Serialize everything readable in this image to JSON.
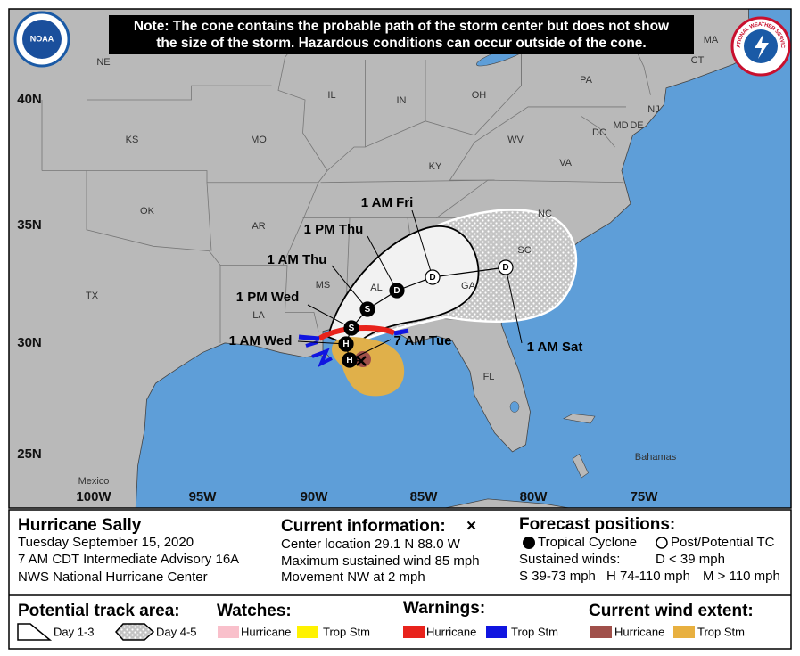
{
  "note": [
    "Note: The cone contains the probable path of the storm center but does not show",
    "the size of the storm. Hazardous conditions can occur outside of the cone."
  ],
  "logos": {
    "noaa": "NOAA",
    "nws": "NATIONAL WEATHER SERVICE"
  },
  "map": {
    "states": [
      "NE",
      "IL",
      "IN",
      "OH",
      "PA",
      "KS",
      "MO",
      "KY",
      "WV",
      "VA",
      "OK",
      "AR",
      "NC",
      "SC",
      "GA",
      "AL",
      "MS",
      "LA",
      "TX",
      "FL",
      "MA",
      "CT",
      "NJ",
      "MD",
      "DE",
      "DC"
    ],
    "places": [
      "Mexico",
      "Bahamas"
    ],
    "latitudes": [
      "40N",
      "35N",
      "30N",
      "25N"
    ],
    "longitudes": [
      "100W",
      "95W",
      "90W",
      "85W",
      "80W",
      "75W"
    ],
    "forecast_times": [
      "1 AM Fri",
      "1 PM Thu",
      "1 AM Thu",
      "1 PM Wed",
      "1 AM Wed",
      "7 AM Tue",
      "1 AM Sat"
    ],
    "markers": [
      "H",
      "H",
      "S",
      "S",
      "D",
      "D",
      "D"
    ]
  },
  "info": {
    "storm": "Hurricane Sally",
    "date": "Tuesday September 15, 2020",
    "advisory": "7 AM CDT Intermediate Advisory 16A",
    "office": "NWS National Hurricane Center",
    "current_title": "Current information:",
    "current_symbol": "×",
    "current_lines": [
      "Center location 29.1 N 88.0 W",
      "Maximum sustained wind 85 mph",
      "Movement NW at 2 mph"
    ],
    "forecast_title": "Forecast positions:",
    "tropical": "Tropical Cyclone",
    "post": "Post/Potential TC",
    "winds_title": "Sustained winds:",
    "winds": [
      "D < 39 mph",
      "S 39-73 mph",
      "H 74-110 mph",
      "M > 110 mph"
    ]
  },
  "legend": {
    "track_title": "Potential track area:",
    "track": [
      "Day 1-3",
      "Day 4-5"
    ],
    "watches_title": "Watches:",
    "watches": [
      "Hurricane",
      "Trop Stm"
    ],
    "warnings_title": "Warnings:",
    "warnings": [
      "Hurricane",
      "Trop Stm"
    ],
    "wind_title": "Current wind extent:",
    "wind": [
      "Hurricane",
      "Trop Stm"
    ]
  }
}
